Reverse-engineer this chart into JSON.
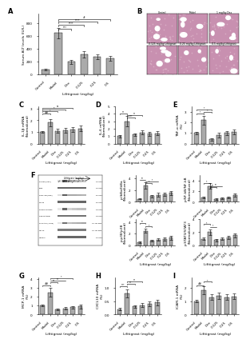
{
  "bar_color": "#aaaaaa",
  "bg_color": "#ffffff",
  "tick_size": 3.0,
  "label_size": 3.2,
  "panel_label_size": 6,
  "categories": [
    "Control",
    "Model",
    "Dex",
    "0.125",
    "0.25",
    "0.5"
  ],
  "panel_A": {
    "ylabel": "Serum ALT levels (IU/L)",
    "xlabel": "Lifitigrast (mg/kg)",
    "values": [
      80,
      650,
      200,
      320,
      280,
      250
    ],
    "errors": [
      10,
      80,
      30,
      50,
      40,
      35
    ],
    "ylim": [
      0,
      950
    ]
  },
  "panel_C": {
    "ylabel": "IL-1β mRNA\n(Normalized)",
    "xlabel": "Lifitigrast (mg/kg)",
    "values": [
      1.0,
      1.8,
      1.1,
      1.15,
      1.2,
      1.3
    ],
    "errors": [
      0.1,
      0.3,
      0.15,
      0.2,
      0.2,
      0.25
    ],
    "ylim": [
      0,
      3.2
    ]
  },
  "panel_D": {
    "ylabel": "IL-6 mRNA\n(Normalized)",
    "xlabel": "Lifitigrast (mg/kg)",
    "values": [
      1.0,
      3.0,
      1.2,
      1.5,
      1.3,
      1.4
    ],
    "errors": [
      0.15,
      0.7,
      0.2,
      0.3,
      0.25,
      0.3
    ],
    "ylim": [
      0,
      5.0
    ]
  },
  "panel_E": {
    "ylabel": "TNF-α mRNA\n(%)",
    "xlabel": "Lifitigrast (mg/kg)",
    "values": [
      1.0,
      2.2,
      0.4,
      0.8,
      1.0,
      1.1
    ],
    "errors": [
      0.1,
      0.4,
      0.1,
      0.2,
      0.2,
      0.2
    ],
    "ylim": [
      0,
      3.5
    ]
  },
  "panel_F_bar1": {
    "ylabel": "p-IkBa/IkBa\n(Normalized)",
    "xlabel": "Lifitigrast (mg/kg)",
    "values": [
      0.5,
      2.8,
      1.0,
      1.2,
      1.3,
      1.5
    ],
    "errors": [
      0.1,
      0.5,
      0.2,
      0.3,
      0.3,
      0.3
    ],
    "ylim": [
      0,
      4.5
    ]
  },
  "panel_F_bar2": {
    "ylabel": "p-NF-kB/NF-kB\n(Normalized)",
    "xlabel": "Lifitigrast (mg/kg)",
    "values": [
      0.8,
      3.0,
      0.5,
      0.6,
      0.8,
      1.2
    ],
    "errors": [
      0.1,
      0.5,
      0.1,
      0.15,
      0.2,
      0.3
    ],
    "ylim": [
      0,
      5.0
    ]
  },
  "panel_F_bar3": {
    "ylabel": "p-p38/p38\n(Normalized)",
    "xlabel": "Lifitigrast (mg/kg)",
    "values": [
      0.5,
      2.5,
      0.8,
      1.0,
      1.1,
      1.3
    ],
    "errors": [
      0.1,
      0.4,
      0.15,
      0.2,
      0.25,
      0.3
    ],
    "ylim": [
      0,
      4.5
    ]
  },
  "panel_F_bar4": {
    "ylabel": "p-STAT3/STAT3\n(Normalized)",
    "xlabel": "Lifitigrast (mg/kg)",
    "values": [
      1.0,
      2.0,
      0.8,
      1.0,
      1.2,
      1.5
    ],
    "errors": [
      0.15,
      0.4,
      0.15,
      0.2,
      0.25,
      0.3
    ],
    "ylim": [
      0,
      4.0
    ]
  },
  "panel_G": {
    "ylabel": "MCP-1 mRNA\n(%)",
    "xlabel": "Lifitigrast (mg/kg)",
    "values": [
      1.0,
      2.5,
      0.6,
      0.7,
      0.8,
      0.9
    ],
    "errors": [
      0.1,
      0.5,
      0.1,
      0.15,
      0.15,
      0.2
    ],
    "ylim": [
      0,
      4.2
    ]
  },
  "panel_H": {
    "ylabel": "CXCL10 mRNA\n(%)",
    "xlabel": "Lifitigrast (mg/kg)",
    "values": [
      0.2,
      0.8,
      0.3,
      0.35,
      0.4,
      0.45
    ],
    "errors": [
      0.05,
      0.15,
      0.05,
      0.07,
      0.08,
      0.1
    ],
    "ylim": [
      0,
      1.4
    ]
  },
  "panel_I": {
    "ylabel": "ICAM-1 mRNA\n(%)",
    "xlabel": "Lifitigrast (mg/kg)",
    "values": [
      1.0,
      1.8,
      1.3,
      1.4,
      1.3,
      1.35
    ],
    "errors": [
      0.1,
      0.3,
      0.2,
      0.25,
      0.2,
      0.22
    ],
    "ylim": [
      0,
      2.8
    ]
  },
  "blot_proteins": [
    "p-IkBa (S32)",
    "IkBa",
    "p-NF-kB (p65)",
    "NF-kB",
    "p-p38 MAPKin",
    "p38 MAPKin",
    "p-STAT3 (Y705)",
    "STAT3",
    "GaPDH"
  ],
  "blot_kda": [
    "40 kDa",
    "40 kDa",
    "65 kDa",
    "65 kDa",
    "38 kDa",
    "38 kDa",
    "75, 86 kDa",
    "75, 86 kDa",
    "36 kDa"
  ],
  "blot_intensities": [
    [
      0.15,
      0.8,
      0.45,
      0.35,
      0.3,
      0.25
    ],
    [
      0.7,
      0.7,
      0.7,
      0.7,
      0.7,
      0.7
    ],
    [
      0.15,
      0.75,
      0.4,
      0.4,
      0.38,
      0.35
    ],
    [
      0.7,
      0.7,
      0.7,
      0.7,
      0.7,
      0.7
    ],
    [
      0.1,
      0.7,
      0.2,
      0.25,
      0.28,
      0.3
    ],
    [
      0.65,
      0.65,
      0.65,
      0.65,
      0.65,
      0.65
    ],
    [
      0.12,
      0.65,
      0.3,
      0.35,
      0.38,
      0.42
    ],
    [
      0.6,
      0.6,
      0.6,
      0.6,
      0.6,
      0.6
    ],
    [
      0.7,
      0.7,
      0.7,
      0.7,
      0.7,
      0.7
    ]
  ],
  "histo_pink": "#c890b0",
  "histo_light": "#e8c8d8",
  "histo_white": "#f5f0f2"
}
